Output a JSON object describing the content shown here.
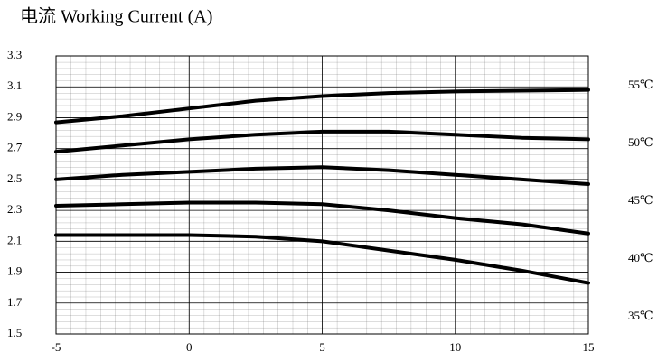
{
  "chart_data": {
    "type": "line",
    "title": "电流 Working Current (A)",
    "x": [
      -5,
      -2.5,
      0,
      2.5,
      5,
      7.5,
      10,
      12.5,
      15
    ],
    "series": [
      {
        "name": "55℃",
        "color": "#000000",
        "values": [
          2.87,
          2.91,
          2.96,
          3.01,
          3.04,
          3.06,
          3.07,
          3.075,
          3.08
        ]
      },
      {
        "name": "50℃",
        "color": "#000000",
        "values": [
          2.68,
          2.72,
          2.76,
          2.79,
          2.81,
          2.81,
          2.79,
          2.77,
          2.76
        ]
      },
      {
        "name": "45℃",
        "color": "#000000",
        "values": [
          2.5,
          2.53,
          2.55,
          2.57,
          2.58,
          2.56,
          2.53,
          2.5,
          2.47
        ]
      },
      {
        "name": "40℃",
        "color": "#000000",
        "values": [
          2.33,
          2.34,
          2.35,
          2.35,
          2.34,
          2.3,
          2.25,
          2.21,
          2.15
        ]
      },
      {
        "name": "35℃",
        "color": "#000000",
        "values": [
          2.14,
          2.14,
          2.14,
          2.13,
          2.1,
          2.04,
          1.98,
          1.91,
          1.83
        ]
      }
    ],
    "xlim": [
      -5,
      15
    ],
    "xticks": [
      -5,
      0,
      5,
      10,
      15
    ],
    "ylim": [
      1.5,
      3.3
    ],
    "yticks": [
      1.5,
      1.7,
      1.9,
      2.1,
      2.3,
      2.5,
      2.7,
      2.9,
      3.1,
      3.3
    ],
    "grid": true
  }
}
